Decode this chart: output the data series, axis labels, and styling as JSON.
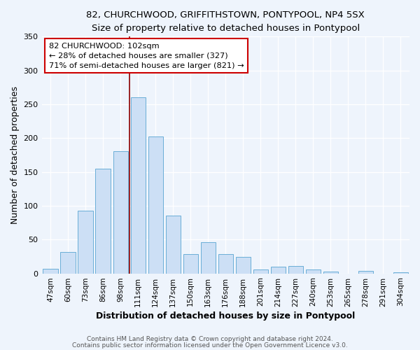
{
  "title": "82, CHURCHWOOD, GRIFFITHSTOWN, PONTYPOOL, NP4 5SX",
  "subtitle": "Size of property relative to detached houses in Pontypool",
  "xlabel": "Distribution of detached houses by size in Pontypool",
  "ylabel": "Number of detached properties",
  "bar_labels": [
    "47sqm",
    "60sqm",
    "73sqm",
    "86sqm",
    "98sqm",
    "111sqm",
    "124sqm",
    "137sqm",
    "150sqm",
    "163sqm",
    "176sqm",
    "188sqm",
    "201sqm",
    "214sqm",
    "227sqm",
    "240sqm",
    "253sqm",
    "265sqm",
    "278sqm",
    "291sqm",
    "304sqm"
  ],
  "bar_values": [
    7,
    32,
    93,
    155,
    181,
    260,
    202,
    85,
    29,
    46,
    29,
    24,
    6,
    10,
    11,
    6,
    3,
    0,
    4,
    0,
    2
  ],
  "bar_color": "#ccdff5",
  "bar_edge_color": "#6aaed6",
  "ylim": [
    0,
    350
  ],
  "yticks": [
    0,
    50,
    100,
    150,
    200,
    250,
    300,
    350
  ],
  "vline_x": 4.5,
  "vline_color": "#8b0000",
  "annotation_title": "82 CHURCHWOOD: 102sqm",
  "annotation_line1": "← 28% of detached houses are smaller (327)",
  "annotation_line2": "71% of semi-detached houses are larger (821) →",
  "annotation_box_edge": "#cc0000",
  "footer1": "Contains HM Land Registry data © Crown copyright and database right 2024.",
  "footer2": "Contains public sector information licensed under the Open Government Licence v3.0.",
  "background_color": "#eef4fc",
  "plot_background_color": "#eef4fc"
}
